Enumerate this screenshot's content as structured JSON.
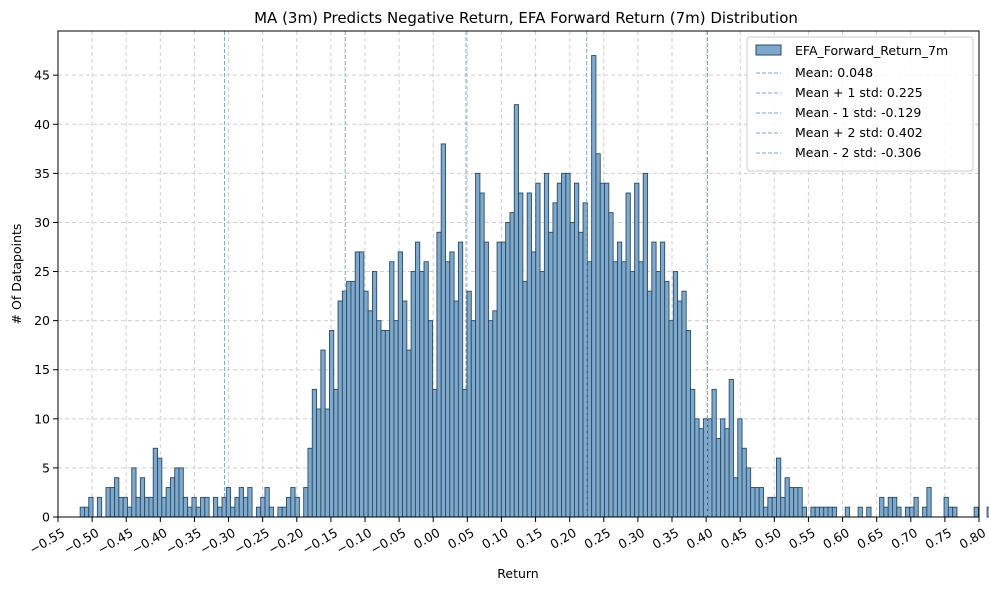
{
  "chart_data": {
    "type": "bar",
    "title": "MA (3m) Predicts Negative Return, EFA Forward Return (7m) Distribution",
    "xlabel": "Return",
    "ylabel": "# Of Datapoints",
    "xlim": [
      -0.55,
      0.8
    ],
    "ylim": [
      0,
      49.5
    ],
    "grid": true,
    "legend_position": "top-right",
    "x_ticks": [
      "−0.55",
      "−0.50",
      "−0.45",
      "−0.40",
      "−0.35",
      "−0.30",
      "−0.25",
      "−0.20",
      "−0.15",
      "−0.10",
      "−0.05",
      "0.00",
      "0.05",
      "0.10",
      "0.15",
      "0.20",
      "0.25",
      "0.30",
      "0.35",
      "0.40",
      "0.45",
      "0.50",
      "0.55",
      "0.60",
      "0.65",
      "0.70",
      "0.75",
      "0.80"
    ],
    "x_tick_values": [
      -0.55,
      -0.5,
      -0.45,
      -0.4,
      -0.35,
      -0.3,
      -0.25,
      -0.2,
      -0.15,
      -0.1,
      -0.05,
      0.0,
      0.05,
      0.1,
      0.15,
      0.2,
      0.25,
      0.3,
      0.35,
      0.4,
      0.45,
      0.5,
      0.55,
      0.6,
      0.65,
      0.7,
      0.75,
      0.8
    ],
    "y_ticks": [
      0,
      5,
      10,
      15,
      20,
      25,
      30,
      35,
      40,
      45
    ],
    "series": [
      {
        "name": "EFA_Forward_Return_7m",
        "color": "#7ea9cc",
        "edge_color": "#2b4a64",
        "bin_start": -0.5175,
        "bin_width": 0.0063,
        "values": [
          1,
          1,
          2,
          0,
          2,
          0,
          3,
          3,
          4,
          2,
          2,
          1,
          5,
          2,
          4,
          2,
          2,
          7,
          6,
          2,
          3,
          4,
          5,
          5,
          2,
          1,
          2,
          1,
          2,
          2,
          0,
          2,
          1,
          2,
          3,
          1,
          2,
          3,
          2,
          3,
          0,
          1,
          2,
          3,
          1,
          0,
          1,
          1,
          2,
          3,
          2,
          0,
          3,
          7,
          13,
          11,
          17,
          11,
          19,
          13,
          22,
          23,
          24,
          24,
          27,
          27,
          23,
          21,
          25,
          20,
          19,
          19,
          26,
          20,
          27,
          22,
          17,
          25,
          28,
          25,
          26,
          20,
          13,
          29,
          38,
          26,
          27,
          22,
          28,
          13,
          23,
          20,
          35,
          33,
          28,
          20,
          21,
          28,
          28,
          30,
          31,
          42,
          33,
          24,
          33,
          27,
          34,
          25,
          35,
          29,
          32,
          34,
          35,
          35,
          30,
          34,
          29,
          32,
          26,
          47,
          37,
          34,
          34,
          31,
          26,
          28,
          26,
          33,
          25,
          34,
          26,
          35,
          23,
          28,
          25,
          28,
          24,
          20,
          25,
          22,
          23,
          19,
          13,
          10,
          9,
          10,
          10,
          13,
          8,
          10,
          9,
          14,
          4,
          10,
          7,
          5,
          3,
          3,
          3,
          1,
          2,
          2,
          6,
          2,
          4,
          3,
          3,
          3,
          1,
          0,
          1,
          1,
          1,
          1,
          1,
          1,
          0,
          0,
          1,
          0,
          0,
          1,
          0,
          1,
          0,
          0,
          2,
          1,
          2,
          2,
          1,
          0,
          1,
          1,
          2,
          0,
          1,
          3,
          0,
          0,
          0,
          2,
          1,
          1,
          0,
          0,
          0,
          0,
          1,
          0,
          0,
          1,
          1,
          0,
          0,
          0,
          0,
          1
        ]
      }
    ],
    "reference_lines": [
      {
        "label": "Mean: 0.048",
        "x": 0.048
      },
      {
        "label": "Mean + 1 std: 0.225",
        "x": 0.225
      },
      {
        "label": "Mean - 1 std: -0.129",
        "x": -0.129
      },
      {
        "label": "Mean + 2 std: 0.402",
        "x": 0.402
      },
      {
        "label": "Mean - 2 std: -0.306",
        "x": -0.306
      }
    ],
    "reference_line_color": "#7ea9cc"
  }
}
